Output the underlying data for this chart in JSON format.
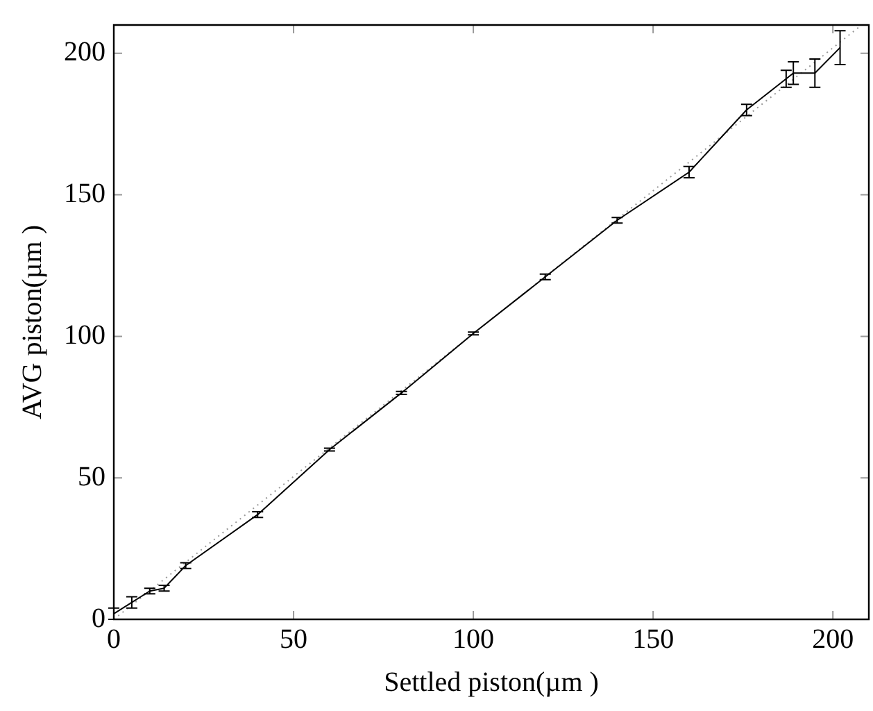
{
  "chart_data": {
    "type": "line",
    "xlabel": "Settled piston(µm )",
    "ylabel": "AVG piston(µm )",
    "xlim": [
      0,
      210
    ],
    "ylim": [
      0,
      210
    ],
    "xticks": [
      0,
      50,
      100,
      150,
      200
    ],
    "yticks": [
      0,
      50,
      100,
      150,
      200
    ],
    "grid": false,
    "legend": false,
    "marker": "none",
    "series": [
      {
        "color": "#000000",
        "line_style": "solid",
        "x": [
          0,
          5,
          10,
          14,
          20,
          40,
          60,
          80,
          100,
          120,
          140,
          160,
          176,
          187,
          189,
          195,
          202
        ],
        "values": [
          2,
          6,
          10,
          11,
          19,
          37,
          60,
          80,
          101,
          121,
          141,
          158,
          180,
          191,
          193,
          193,
          202
        ],
        "errors": [
          2,
          2,
          1,
          1,
          1,
          1,
          0.5,
          0.5,
          0.5,
          1,
          1,
          2,
          2,
          3,
          4,
          5,
          6
        ]
      },
      {
        "color": "#999999",
        "line_style": "dotted",
        "x": [
          0,
          208
        ],
        "values": [
          0,
          210
        ]
      }
    ]
  }
}
